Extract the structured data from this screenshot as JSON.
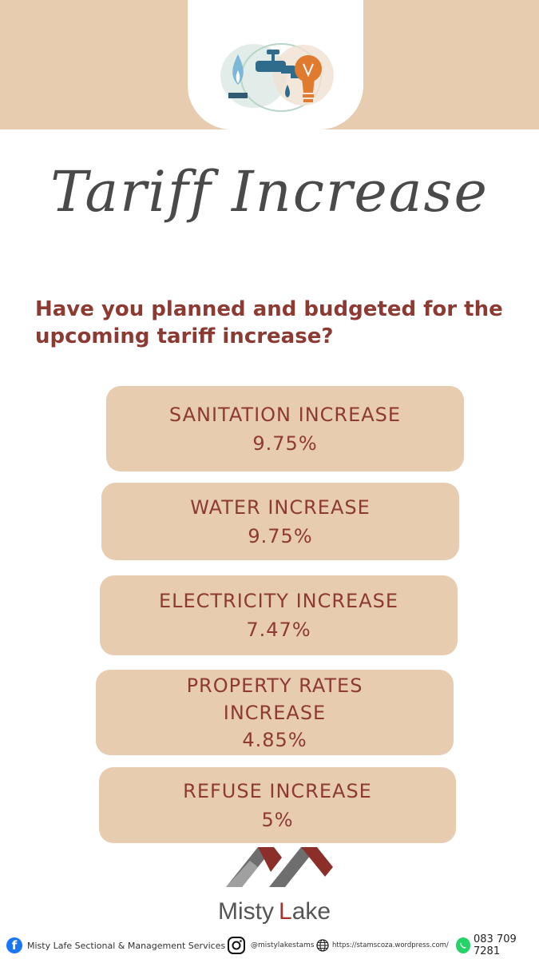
{
  "colors": {
    "tan": "#e7ccb0",
    "maroon": "#8d3a33"
  },
  "header": {
    "icon_names": [
      "gas-flame-icon",
      "water-tap-icon",
      "light-bulb-icon"
    ]
  },
  "title": "Tariff Increase",
  "question": "Have you planned and budgeted for the upcoming tariff increase?",
  "cards": [
    {
      "lines": [
        "SANITATION INCREASE",
        "9.75%"
      ]
    },
    {
      "lines": [
        "WATER INCREASE",
        "9.75%"
      ]
    },
    {
      "lines": [
        "ELECTRICITY INCREASE",
        "7.47%"
      ]
    },
    {
      "lines": [
        "PROPERTY RATES",
        "INCREASE",
        "4.85%"
      ]
    },
    {
      "lines": [
        "REFUSE INCREASE",
        "5%"
      ]
    }
  ],
  "logo": {
    "text_misty": "Misty",
    "text_lake_L": "L",
    "text_lake_rest": "ake"
  },
  "footer": {
    "facebook": "Misty Lafe Sectional & Management Services",
    "instagram": "@mistylakestams",
    "website": "https://stamscoza.wordpress.com/",
    "phone": "083 709 7281"
  }
}
